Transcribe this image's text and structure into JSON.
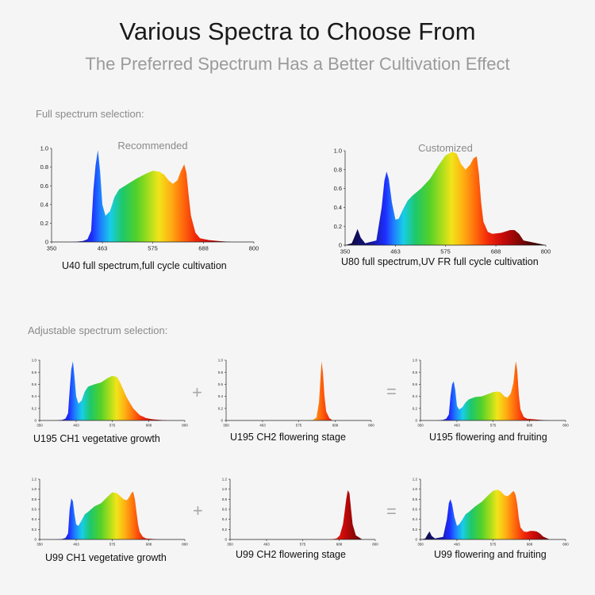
{
  "header": {
    "title": "Various Spectra to Choose From",
    "subtitle": "The Preferred Spectrum Has a Better Cultivation Effect"
  },
  "sections": {
    "full": "Full spectrum selection:",
    "adjustable": "Adjustable spectrum selection:"
  },
  "operators": {
    "plus": "+",
    "equals": "="
  },
  "chart_data": [
    {
      "id": "u40",
      "type": "area",
      "title": "Recommended",
      "caption": "U40 full spectrum,full cycle cultivation",
      "xticks": [
        "350",
        "463",
        "575",
        "688",
        "800"
      ],
      "yticks": [
        "0",
        "0.2",
        "0.4",
        "0.6",
        "0.8",
        "1.0"
      ],
      "xlim": [
        350,
        800
      ],
      "ylim": [
        0,
        1.0
      ],
      "x": [
        350,
        400,
        420,
        430,
        438,
        443,
        448,
        453,
        458,
        463,
        470,
        480,
        490,
        500,
        520,
        540,
        560,
        575,
        590,
        600,
        610,
        620,
        630,
        638,
        645,
        650,
        655,
        660,
        670,
        680,
        700,
        720,
        750,
        800
      ],
      "y": [
        0,
        0,
        0.01,
        0.03,
        0.12,
        0.55,
        0.82,
        0.98,
        0.75,
        0.4,
        0.28,
        0.33,
        0.48,
        0.56,
        0.62,
        0.68,
        0.73,
        0.76,
        0.75,
        0.72,
        0.66,
        0.62,
        0.66,
        0.76,
        0.83,
        0.74,
        0.5,
        0.28,
        0.1,
        0.04,
        0.02,
        0.01,
        0,
        0
      ]
    },
    {
      "id": "u80",
      "type": "area",
      "title": "Customized",
      "caption": "U80 full spectrum,UV FR full cycle cultivation",
      "xticks": [
        "350",
        "463",
        "575",
        "688",
        "800"
      ],
      "yticks": [
        "0",
        "0.2",
        "0.4",
        "0.6",
        "0.8",
        "1.0"
      ],
      "xlim": [
        350,
        800
      ],
      "ylim": [
        0,
        1.0
      ],
      "x": [
        350,
        365,
        372,
        378,
        385,
        395,
        420,
        432,
        438,
        443,
        448,
        455,
        463,
        470,
        480,
        490,
        500,
        520,
        540,
        560,
        575,
        590,
        600,
        610,
        620,
        630,
        638,
        645,
        650,
        655,
        660,
        670,
        680,
        700,
        720,
        730,
        740,
        750,
        800
      ],
      "y": [
        0,
        0.02,
        0.1,
        0.17,
        0.08,
        0.02,
        0.05,
        0.4,
        0.68,
        0.78,
        0.7,
        0.45,
        0.27,
        0.28,
        0.38,
        0.47,
        0.52,
        0.6,
        0.7,
        0.85,
        0.95,
        0.99,
        0.97,
        0.86,
        0.8,
        0.85,
        0.92,
        0.94,
        0.75,
        0.45,
        0.25,
        0.14,
        0.12,
        0.13,
        0.16,
        0.16,
        0.12,
        0.05,
        0
      ]
    },
    {
      "id": "u195-ch1",
      "type": "area",
      "caption": "U195 CH1 vegetative growth",
      "xticks": [
        "350",
        "463",
        "575",
        "688",
        "800"
      ],
      "yticks": [
        "0",
        "0.2",
        "0.4",
        "0.6",
        "0.8",
        "1.0"
      ],
      "xlim": [
        350,
        800
      ],
      "ylim": [
        0,
        1.0
      ],
      "x": [
        350,
        400,
        420,
        430,
        438,
        443,
        448,
        453,
        458,
        463,
        470,
        480,
        490,
        500,
        520,
        540,
        560,
        575,
        590,
        600,
        610,
        620,
        640,
        660,
        680,
        700,
        720,
        750,
        800
      ],
      "y": [
        0,
        0,
        0.01,
        0.03,
        0.12,
        0.5,
        0.85,
        0.98,
        0.72,
        0.4,
        0.28,
        0.33,
        0.48,
        0.56,
        0.6,
        0.63,
        0.7,
        0.74,
        0.72,
        0.62,
        0.5,
        0.38,
        0.2,
        0.09,
        0.04,
        0.02,
        0.01,
        0,
        0
      ]
    },
    {
      "id": "u195-ch2",
      "type": "area",
      "caption": "U195 CH2 flowering stage",
      "xticks": [
        "350",
        "463",
        "575",
        "688",
        "800"
      ],
      "yticks": [
        "0",
        "0.2",
        "0.4",
        "0.6",
        "0.8",
        "1.0"
      ],
      "xlim": [
        350,
        800
      ],
      "ylim": [
        0,
        1.0
      ],
      "x": [
        350,
        600,
        620,
        630,
        638,
        643,
        646,
        650,
        655,
        660,
        670,
        680,
        800
      ],
      "y": [
        0,
        0,
        0.01,
        0.05,
        0.3,
        0.75,
        0.98,
        0.8,
        0.4,
        0.15,
        0.04,
        0,
        0
      ]
    },
    {
      "id": "u195-combined",
      "type": "area",
      "caption": "U195 flowering and fruiting",
      "xticks": [
        "350",
        "463",
        "575",
        "688",
        "800"
      ],
      "yticks": [
        "0",
        "0.2",
        "0.4",
        "0.6",
        "0.8",
        "1.0"
      ],
      "xlim": [
        350,
        800
      ],
      "ylim": [
        0,
        1.0
      ],
      "x": [
        350,
        400,
        420,
        430,
        438,
        443,
        448,
        453,
        458,
        463,
        470,
        480,
        490,
        500,
        520,
        540,
        560,
        575,
        590,
        600,
        610,
        620,
        630,
        638,
        643,
        646,
        650,
        655,
        660,
        670,
        680,
        700,
        720,
        750,
        800
      ],
      "y": [
        0,
        0,
        0.01,
        0.03,
        0.1,
        0.4,
        0.6,
        0.65,
        0.5,
        0.24,
        0.18,
        0.22,
        0.3,
        0.35,
        0.39,
        0.4,
        0.44,
        0.47,
        0.48,
        0.46,
        0.4,
        0.38,
        0.45,
        0.62,
        0.88,
        0.98,
        0.82,
        0.42,
        0.18,
        0.06,
        0.03,
        0.02,
        0.01,
        0,
        0
      ]
    },
    {
      "id": "u99-ch1",
      "type": "area",
      "caption": "U99 CH1 vegetative growth",
      "xticks": [
        "350",
        "463",
        "575",
        "688",
        "800"
      ],
      "yticks": [
        "0",
        "0.2",
        "0.4",
        "0.6",
        "0.8",
        "1.0",
        "1.2"
      ],
      "xlim": [
        350,
        800
      ],
      "ylim": [
        0,
        1.2
      ],
      "x": [
        350,
        400,
        420,
        430,
        438,
        443,
        448,
        453,
        458,
        463,
        470,
        480,
        490,
        500,
        520,
        540,
        560,
        575,
        590,
        600,
        610,
        620,
        628,
        635,
        640,
        645,
        650,
        655,
        660,
        670,
        680,
        700,
        720,
        750,
        800
      ],
      "y": [
        0,
        0,
        0.01,
        0.03,
        0.12,
        0.6,
        0.82,
        0.76,
        0.5,
        0.3,
        0.27,
        0.38,
        0.5,
        0.55,
        0.66,
        0.72,
        0.85,
        0.94,
        0.92,
        0.86,
        0.8,
        0.78,
        0.85,
        0.93,
        0.95,
        0.8,
        0.55,
        0.3,
        0.15,
        0.05,
        0.02,
        0.01,
        0,
        0,
        0
      ]
    },
    {
      "id": "u99-ch2",
      "type": "area",
      "caption": "U99 CH2 flowering stage",
      "xticks": [
        "350",
        "463",
        "575",
        "688",
        "800"
      ],
      "yticks": [
        "0",
        "0.2",
        "0.4",
        "0.6",
        "0.8",
        "1.0",
        "1.2"
      ],
      "xlim": [
        350,
        800
      ],
      "ylim": [
        0,
        1.2
      ],
      "x": [
        350,
        660,
        680,
        690,
        700,
        705,
        710,
        715,
        720,
        725,
        730,
        740,
        760,
        800
      ],
      "y": [
        0,
        0,
        0.02,
        0.08,
        0.3,
        0.55,
        0.8,
        0.98,
        0.92,
        0.6,
        0.3,
        0.08,
        0,
        0
      ]
    },
    {
      "id": "u99-combined",
      "type": "area",
      "caption": "U99 flowering and fruiting",
      "xticks": [
        "350",
        "463",
        "575",
        "688",
        "800"
      ],
      "yticks": [
        "0",
        "0.2",
        "0.4",
        "0.6",
        "0.8",
        "1.0",
        "1.2"
      ],
      "xlim": [
        350,
        800
      ],
      "ylim": [
        0,
        1.2
      ],
      "x": [
        350,
        365,
        372,
        378,
        385,
        395,
        420,
        432,
        438,
        443,
        448,
        455,
        463,
        470,
        480,
        490,
        500,
        520,
        540,
        560,
        575,
        590,
        600,
        610,
        620,
        628,
        635,
        640,
        645,
        650,
        655,
        660,
        670,
        680,
        690,
        700,
        710,
        720,
        730,
        750,
        800
      ],
      "y": [
        0,
        0.02,
        0.1,
        0.16,
        0.07,
        0.02,
        0.05,
        0.4,
        0.72,
        0.8,
        0.7,
        0.45,
        0.27,
        0.3,
        0.4,
        0.5,
        0.55,
        0.66,
        0.75,
        0.88,
        0.97,
        0.99,
        0.95,
        0.88,
        0.86,
        0.9,
        0.95,
        0.96,
        0.88,
        0.7,
        0.42,
        0.24,
        0.16,
        0.15,
        0.17,
        0.17,
        0.16,
        0.12,
        0.06,
        0,
        0
      ]
    }
  ]
}
